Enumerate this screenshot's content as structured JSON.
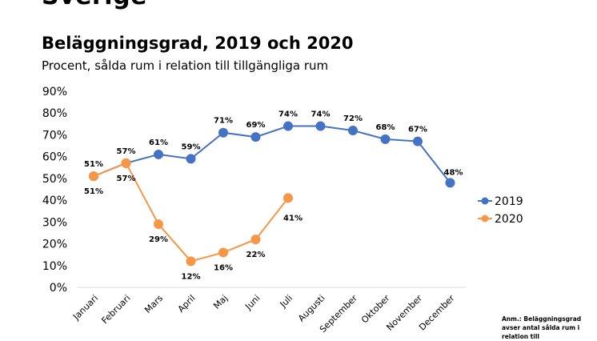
{
  "page": {
    "heading": "Sverige",
    "note": "Anm.: Beläggningsgrad avser antal sålda rum i relation till"
  },
  "chart_data": {
    "type": "line",
    "title": "Beläggningsgrad, 2019 och 2020",
    "subtitle": "Procent, sålda rum i relation till tillgängliga rum",
    "xlabel": "",
    "ylabel": "",
    "ylim": [
      0,
      90
    ],
    "yticks": [
      0,
      10,
      20,
      30,
      40,
      50,
      60,
      70,
      80,
      90
    ],
    "ytick_labels": [
      "0%",
      "10%",
      "20%",
      "30%",
      "40%",
      "50%",
      "60%",
      "70%",
      "80%",
      "90%"
    ],
    "categories": [
      "Januari",
      "Februari",
      "Mars",
      "April",
      "Maj",
      "Juni",
      "Juli",
      "Augusti",
      "September",
      "Oktober",
      "November",
      "December"
    ],
    "grid": false,
    "legend": "right",
    "series": [
      {
        "name": "2019",
        "color": "#4472C4",
        "values": [
          51,
          57,
          61,
          59,
          71,
          69,
          74,
          74,
          72,
          68,
          67,
          48
        ],
        "labels": [
          "51%",
          "57%",
          "61%",
          "59%",
          "71%",
          "69%",
          "74%",
          "74%",
          "72%",
          "68%",
          "67%",
          "48%"
        ]
      },
      {
        "name": "2020",
        "color": "#F79646",
        "values": [
          51,
          57,
          29,
          12,
          16,
          22,
          41
        ],
        "labels": [
          "51%",
          "57%",
          "29%",
          "12%",
          "16%",
          "22%",
          "41%"
        ]
      }
    ]
  }
}
